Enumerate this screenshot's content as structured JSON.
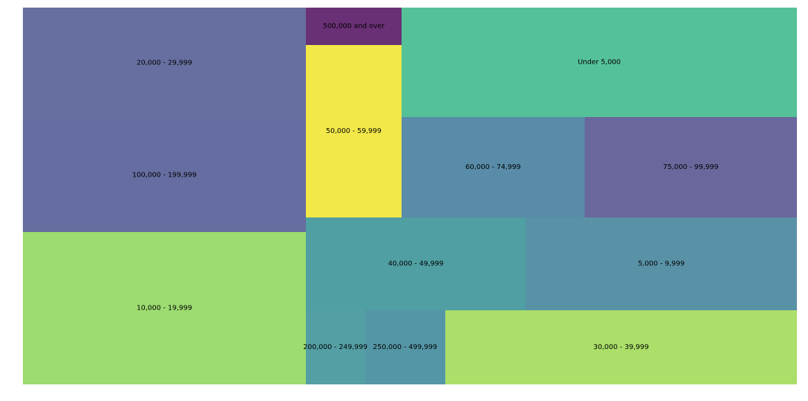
{
  "chart_data": {
    "type": "treemap",
    "title": "",
    "items": [
      {
        "label": "20,000 - 29,999",
        "color": "#666fa0"
      },
      {
        "label": "100,000 - 199,999",
        "color": "#666da0"
      },
      {
        "label": "10,000 - 19,999",
        "color": "#9cdc70"
      },
      {
        "label": "500,000 and over",
        "color": "#6a3075"
      },
      {
        "label": "50,000 - 59,999",
        "color": "#f3e84a"
      },
      {
        "label": "Under 5,000",
        "color": "#55c198"
      },
      {
        "label": "60,000 - 74,999",
        "color": "#598ca8"
      },
      {
        "label": "75,000 - 99,999",
        "color": "#6a679c"
      },
      {
        "label": "40,000 - 49,999",
        "color": "#509fa3"
      },
      {
        "label": "5,000 - 9,999",
        "color": "#5992a6"
      },
      {
        "label": "200,000 - 249,999",
        "color": "#539fa4"
      },
      {
        "label": "250,000 - 499,999",
        "color": "#5496a6"
      },
      {
        "label": "30,000 - 39,999",
        "color": "#abdf69"
      }
    ]
  }
}
